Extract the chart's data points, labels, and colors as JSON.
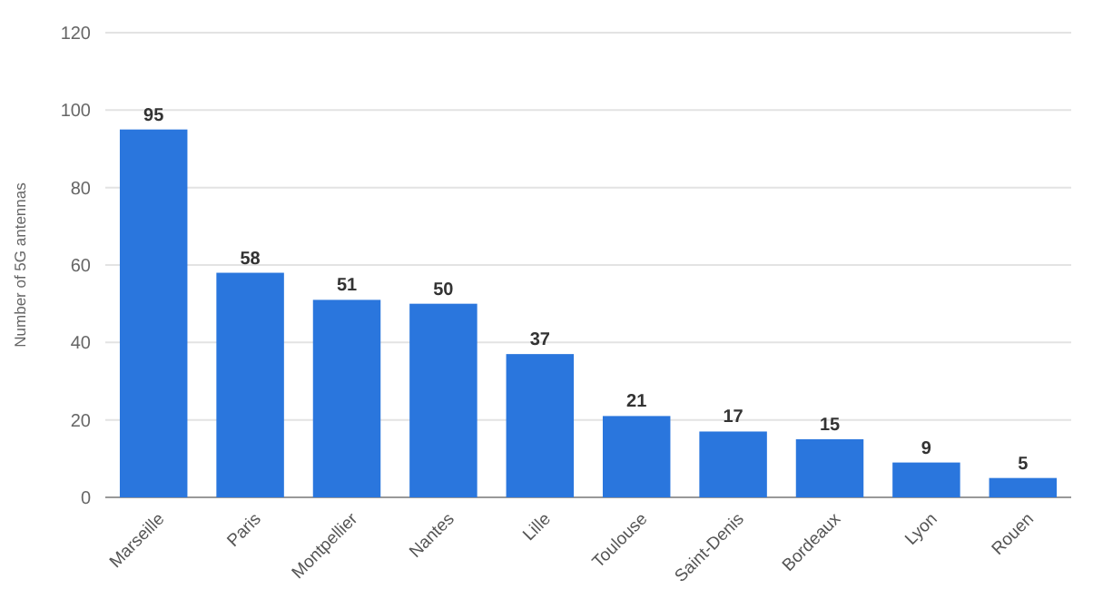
{
  "chart_data": {
    "type": "bar",
    "ylabel": "Number of 5G antennas",
    "categories": [
      "Marseille",
      "Paris",
      "Montpellier",
      "Nantes",
      "Lille",
      "Toulouse",
      "Saint-Denis",
      "Bordeaux",
      "Lyon",
      "Rouen"
    ],
    "values": [
      95,
      58,
      51,
      50,
      37,
      21,
      17,
      15,
      9,
      5
    ],
    "color": "#2a76dd",
    "ylim": [
      0,
      120
    ],
    "yticks": [
      0,
      20,
      40,
      60,
      80,
      100,
      120
    ],
    "grid": "y",
    "data_labels": true
  }
}
